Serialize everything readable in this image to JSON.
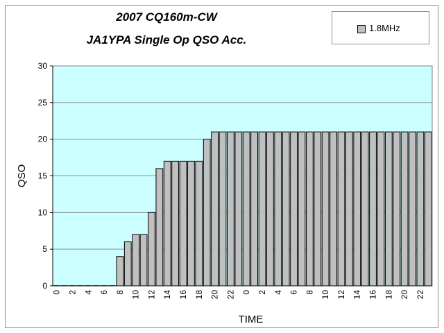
{
  "chart_data": {
    "type": "bar",
    "title": [
      "2007 CQ160m-CW",
      "JA1YPA Single Op  QSO Acc."
    ],
    "xlabel": "TIME",
    "ylabel": "QSO",
    "ylim": [
      0,
      30
    ],
    "yticks": [
      0,
      5,
      10,
      15,
      20,
      25,
      30
    ],
    "grid": true,
    "legend_position": "top-right",
    "series": [
      {
        "name": "1.8MHz",
        "color": "#c0c0c0",
        "values": [
          0,
          0,
          0,
          0,
          0,
          0,
          0,
          0,
          4,
          6,
          7,
          7,
          10,
          16,
          17,
          17,
          17,
          17,
          17,
          20,
          21,
          21,
          21,
          21,
          21,
          21,
          21,
          21,
          21,
          21,
          21,
          21,
          21,
          21,
          21,
          21,
          21,
          21,
          21,
          21,
          21,
          21,
          21,
          21,
          21,
          21,
          21,
          21
        ]
      }
    ],
    "categories": [
      "0",
      "1",
      "2",
      "3",
      "4",
      "5",
      "6",
      "7",
      "8",
      "9",
      "10",
      "11",
      "12",
      "13",
      "14",
      "15",
      "16",
      "17",
      "18",
      "19",
      "20",
      "21",
      "22",
      "23",
      "0",
      "1",
      "2",
      "3",
      "4",
      "5",
      "6",
      "7",
      "8",
      "9",
      "10",
      "11",
      "12",
      "13",
      "14",
      "15",
      "16",
      "17",
      "18",
      "19",
      "20",
      "21",
      "22",
      "23"
    ],
    "tick_labels_shown": [
      "0",
      "2",
      "4",
      "6",
      "8",
      "10",
      "12",
      "14",
      "16",
      "18",
      "20",
      "22",
      "0",
      "2",
      "4",
      "6",
      "8",
      "10",
      "12",
      "14",
      "16",
      "18",
      "20",
      "22"
    ],
    "plot_background": "#ccffff"
  }
}
